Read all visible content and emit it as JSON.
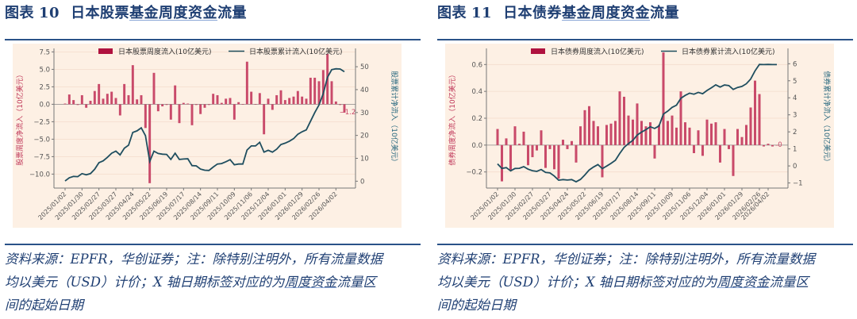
{
  "figures": [
    {
      "label": "图表",
      "number": "10",
      "title_plain": "日本股票",
      "title_underlined": "基金周度资金",
      "title_tail": "流量",
      "note": {
        "line1": "资料来源：EPFR，华创证券；注：除特别注明外，所有流量数据",
        "line2_pre": "均以美元（USD）计价；X 轴日期标签对应的为",
        "line2_underlined": "周度资金",
        "line2_post": "流量区",
        "line3": "间的起始日期"
      }
    },
    {
      "label": "图表",
      "number": "11",
      "title_plain": "日本债券",
      "title_underlined": "基金周度资金",
      "title_tail": "流量",
      "note": {
        "line1": "资料来源：EPFR，华创证券；注：除特别注明外，所有流量数据",
        "line2_pre": "均以美元（USD）计价；X 轴日期标签对应的为",
        "line2_underlined": "周度资金",
        "line2_post": "流量区",
        "line3": "间的起始日期"
      }
    }
  ],
  "colors": {
    "bar": "#c94a6a",
    "legend_bar": "#b0123f",
    "line": "#1f4e5f",
    "background": "#fdf0e4",
    "title": "#1f3f73"
  },
  "chart_data": [
    {
      "type": "bar+line",
      "title": "日本股票基金周度资金流量",
      "xlabel": "",
      "ylabel": "股票周度净流入（10亿美元）",
      "ylabel_right": "股票累计净流入（10亿美元）",
      "ylim": [
        -12,
        8
      ],
      "ylim_right": [
        -3,
        58
      ],
      "yticks": [
        -10.0,
        -7.5,
        -5.0,
        -2.5,
        0.0,
        2.5,
        5.0,
        7.5
      ],
      "yticks_right": [
        0,
        10,
        20,
        30,
        40,
        50
      ],
      "xtick_labels": [
        "2025/01/02",
        "2025/01/30",
        "2025/02/27",
        "2025/03/27",
        "2025/04/24",
        "2025/05/22",
        "2025/06/19",
        "2025/07/17",
        "2025/08/14",
        "2025/09/11",
        "2025/10/09",
        "2025/11/06",
        "2025/12/04",
        "2026/01/01",
        "2026/01/29",
        "2026/02/26",
        "2026/04/02"
      ],
      "legend": [
        "日本股票周度流入(10亿美元)",
        "日本股票累计流入(10亿美元)"
      ],
      "annotation": "-1.2",
      "series": [
        {
          "name": "日本股票周度流入(10亿美元)",
          "kind": "bar",
          "axis": "left",
          "values": [
            0.1,
            1.4,
            0.6,
            -0.1,
            1.3,
            -0.5,
            0.5,
            1.9,
            2.9,
            0.8,
            1.5,
            1.8,
            0.9,
            -1.6,
            2.9,
            1.3,
            5.6,
            0.7,
            1.3,
            -3.4,
            -11.3,
            4.5,
            -1.0,
            -0.3,
            -0.1,
            -2.2,
            2.7,
            -2.7,
            0.2,
            0.1,
            -3.0,
            -0.1,
            -1.4,
            -0.5,
            -0.1,
            1.5,
            1.3,
            0.2,
            0.8,
            0.9,
            -2.2,
            0.3,
            0.0,
            6.1,
            1.8,
            0.0,
            1.6,
            -4.3,
            0.8,
            -0.8,
            1.3,
            2.0,
            0.6,
            0.9,
            1.1,
            1.9,
            1.1,
            0.8,
            3.8,
            3.8,
            3.3,
            4.9,
            7.2,
            3.3,
            0.4,
            -0.1,
            -1.2
          ]
        },
        {
          "name": "日本股票累计流入(10亿美元)",
          "kind": "line",
          "axis": "right",
          "values": [
            0.1,
            1.5,
            2.1,
            2.0,
            3.3,
            2.8,
            3.3,
            5.2,
            8.1,
            8.9,
            10.4,
            12.2,
            13.1,
            11.5,
            14.4,
            15.7,
            21.3,
            22.0,
            23.3,
            19.9,
            8.6,
            13.1,
            12.1,
            11.8,
            11.7,
            9.5,
            12.2,
            9.5,
            9.7,
            9.8,
            6.8,
            6.7,
            5.3,
            4.8,
            4.7,
            6.2,
            7.5,
            7.7,
            8.5,
            9.4,
            7.2,
            7.5,
            7.5,
            13.6,
            15.4,
            15.4,
            17.0,
            12.7,
            13.5,
            12.7,
            14.0,
            16.0,
            16.6,
            17.5,
            18.6,
            20.5,
            21.6,
            22.4,
            26.2,
            30.0,
            33.3,
            38.2,
            45.4,
            48.7,
            49.1,
            49.0,
            47.8
          ]
        }
      ]
    },
    {
      "type": "bar+line",
      "title": "日本债券基金周度资金流量",
      "xlabel": "",
      "ylabel": "债券周度净流入（10亿美元）",
      "ylabel_right": "债券累计净流入（10亿美元）",
      "ylim": [
        -0.32,
        0.72
      ],
      "ylim_right": [
        -1.3,
        6.9
      ],
      "yticks": [
        -0.2,
        0.0,
        0.2,
        0.4,
        0.6
      ],
      "yticks_right": [
        -1,
        0,
        1,
        2,
        3,
        4,
        5,
        6
      ],
      "xtick_labels": [
        "2025/01/02",
        "2025/01/30",
        "2025/02/27",
        "2025/03/27",
        "2025/04/24",
        "2025/05/22",
        "2025/06/19",
        "2025/07/17",
        "2025/08/14",
        "2025/09/11",
        "2025/10/09",
        "2025/11/06",
        "2025/12/04",
        "2026/01/01",
        "2026/01/29",
        "2026/02/26",
        "2026/04/02"
      ],
      "legend": [
        "日本债券周度流入(10亿美元)",
        "日本债券累计流入(10亿美元)"
      ],
      "annotation": "0",
      "series": [
        {
          "name": "日本债券周度流入(10亿美元)",
          "kind": "bar",
          "axis": "left",
          "values": [
            0.12,
            -0.27,
            0.05,
            -0.19,
            0.14,
            0.01,
            0.1,
            -0.15,
            -0.09,
            -0.04,
            0.11,
            -0.17,
            -0.03,
            -0.18,
            -0.25,
            0.04,
            -0.03,
            0.03,
            -0.13,
            0.14,
            0.26,
            0.29,
            0.18,
            0.14,
            -0.24,
            0.15,
            0.16,
            0.18,
            0.4,
            0.36,
            0.22,
            0.19,
            0.31,
            0.18,
            0.14,
            0.17,
            -0.1,
            0.15,
            0.69,
            0.18,
            0.22,
            0.13,
            0.4,
            0.17,
            0.13,
            -0.06,
            0.11,
            -0.08,
            0.19,
            0.16,
            0.17,
            -0.13,
            0.12,
            -0.03,
            -0.23,
            0.12,
            0.06,
            0.15,
            0.28,
            0.48,
            0.38,
            -0.01,
            0.01,
            -0.01,
            0.0
          ]
        },
        {
          "name": "日本债券累计流入(10亿美元)",
          "kind": "line",
          "axis": "right",
          "values": [
            0.12,
            -0.15,
            -0.1,
            -0.29,
            -0.15,
            -0.14,
            -0.04,
            -0.19,
            -0.28,
            -0.32,
            -0.21,
            -0.38,
            -0.41,
            -0.59,
            -0.84,
            -0.8,
            -0.83,
            -0.8,
            -0.93,
            -0.79,
            -0.53,
            -0.24,
            -0.06,
            0.08,
            -0.16,
            -0.01,
            0.15,
            0.33,
            0.73,
            1.09,
            1.31,
            1.5,
            1.81,
            1.99,
            2.13,
            2.3,
            2.2,
            2.35,
            3.04,
            3.22,
            3.44,
            3.57,
            3.97,
            4.14,
            4.27,
            4.21,
            4.32,
            4.24,
            4.43,
            4.59,
            4.76,
            4.63,
            4.75,
            4.72,
            4.49,
            4.61,
            4.67,
            4.82,
            5.1,
            5.58,
            5.96,
            5.95,
            5.96,
            5.95,
            5.95
          ]
        }
      ]
    }
  ]
}
